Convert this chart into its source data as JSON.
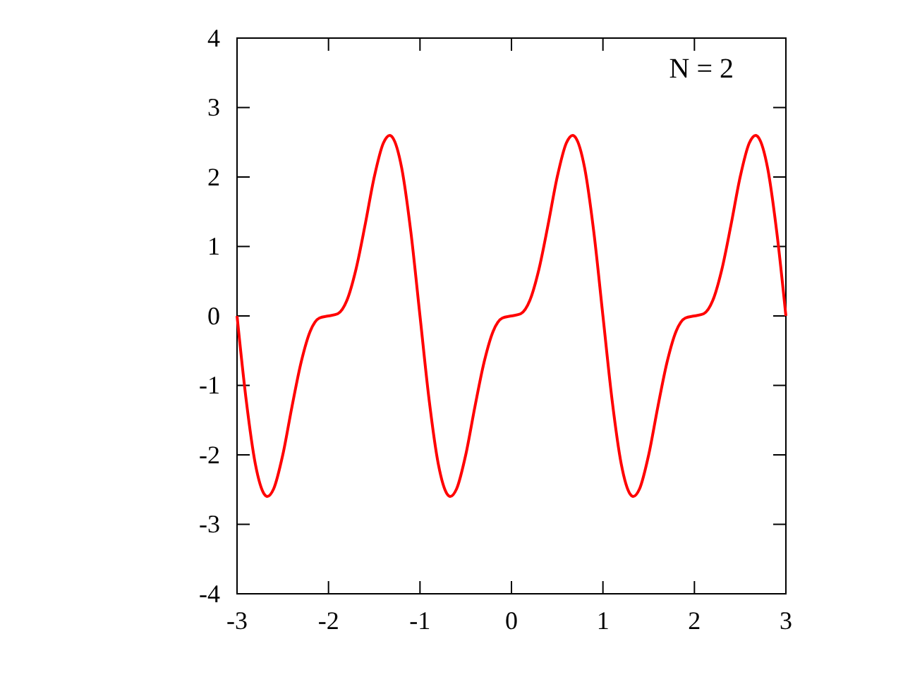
{
  "chart_data": {
    "type": "line",
    "annotations": [
      "N = 2"
    ],
    "xlim": [
      -3,
      3
    ],
    "xticks": [
      -3,
      -2,
      -1,
      0,
      1,
      2,
      3
    ],
    "ylim": [
      -4,
      4
    ],
    "yticks": [
      -4,
      -3,
      -2,
      -1,
      0,
      1,
      2,
      3,
      4
    ],
    "grid": false,
    "series": [
      {
        "color": "#ff0000",
        "x": [
          -3,
          -2.9,
          -2.8,
          -2.7,
          -2.67,
          -2.6,
          -2.5,
          -2.4,
          -2.3,
          -2.2,
          -2.1,
          -2,
          -1.9,
          -1.8,
          -1.7,
          -1.6,
          -1.5,
          -1.4,
          -1.33,
          -1.3,
          -1.2,
          -1.1,
          -1,
          -0.9,
          -0.8,
          -0.7,
          -0.67,
          -0.6,
          -0.5,
          -0.4,
          -0.3,
          -0.2,
          -0.1,
          0,
          0.1,
          0.2,
          0.3,
          0.4,
          0.5,
          0.6,
          0.67,
          0.7,
          0.8,
          0.9,
          1,
          1.1,
          1.2,
          1.3,
          1.33,
          1.4,
          1.5,
          1.6,
          1.7,
          1.8,
          1.9,
          2,
          2.1,
          2.2,
          2.3,
          2.4,
          2.5,
          2.6,
          2.67,
          2.7,
          2.8,
          2.9,
          3
        ],
        "values": [
          0,
          -1.21,
          -2.13,
          -2.57,
          -2.6,
          -2.49,
          -2,
          -1.31,
          -0.67,
          -0.22,
          -0.03,
          0,
          0.03,
          0.22,
          0.67,
          1.31,
          2,
          2.49,
          2.6,
          2.57,
          2.13,
          1.21,
          0,
          -1.21,
          -2.13,
          -2.57,
          -2.6,
          -2.49,
          -2,
          -1.31,
          -0.67,
          -0.22,
          -0.03,
          0,
          0.03,
          0.22,
          0.67,
          1.31,
          2,
          2.49,
          2.6,
          2.57,
          2.13,
          1.21,
          0,
          -1.21,
          -2.13,
          -2.57,
          -2.6,
          -2.49,
          -2,
          -1.31,
          -0.67,
          -0.22,
          -0.03,
          0,
          0.03,
          0.22,
          0.67,
          1.31,
          2,
          2.49,
          2.6,
          2.57,
          2.13,
          1.21,
          0
        ]
      }
    ]
  }
}
